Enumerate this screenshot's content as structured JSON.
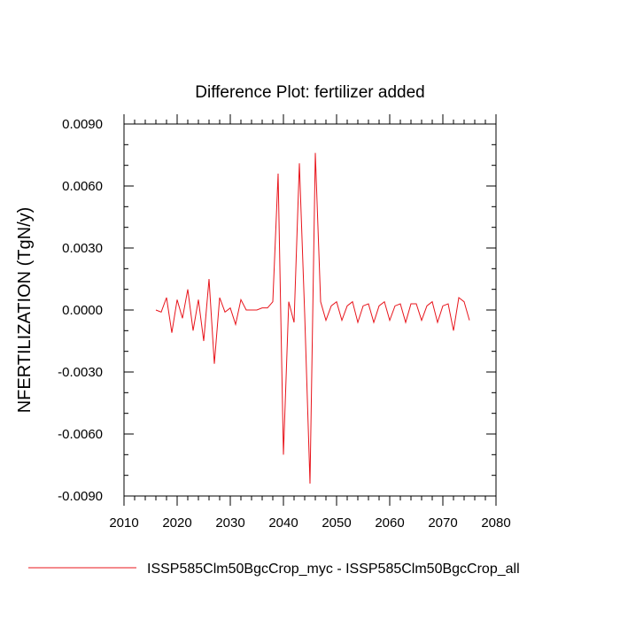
{
  "chart_data": {
    "type": "line",
    "title": "Difference Plot: fertilizer added",
    "xlabel": "",
    "ylabel": "NFERTILIZATION  (TgN/y)",
    "xlim": [
      2010,
      2080
    ],
    "ylim": [
      -0.009,
      0.009
    ],
    "xticks": [
      2010,
      2020,
      2030,
      2040,
      2050,
      2060,
      2070,
      2080
    ],
    "xtick_labels": [
      "2010",
      "2020",
      "2030",
      "2040",
      "2050",
      "2060",
      "2070",
      "2080"
    ],
    "yticks": [
      0.009,
      0.006,
      0.003,
      0.0,
      -0.003,
      -0.006,
      -0.009
    ],
    "ytick_labels": [
      "0.0090",
      "0.0060",
      "0.0030",
      "0.0000",
      "-0.0030",
      "-0.0060",
      "-0.0090"
    ],
    "grid": false,
    "legend_position": "bottom",
    "series": [
      {
        "name": "ISSP585Clm50BgcCrop_myc - ISSP585Clm50BgcCrop_all",
        "color": "#e8141b",
        "x": [
          2016,
          2017,
          2018,
          2019,
          2020,
          2021,
          2022,
          2023,
          2024,
          2025,
          2026,
          2027,
          2028,
          2029,
          2030,
          2031,
          2032,
          2033,
          2034,
          2035,
          2036,
          2037,
          2038,
          2039,
          2040,
          2041,
          2042,
          2043,
          2044,
          2045,
          2046,
          2047,
          2048,
          2049,
          2050,
          2051,
          2052,
          2053,
          2054,
          2055,
          2056,
          2057,
          2058,
          2059,
          2060,
          2061,
          2062,
          2063,
          2064,
          2065,
          2066,
          2067,
          2068,
          2069,
          2070,
          2071,
          2072,
          2073,
          2074,
          2075
        ],
        "y": [
          0.0,
          -0.0001,
          0.0006,
          -0.0011,
          0.0005,
          -0.0004,
          0.001,
          -0.001,
          0.0005,
          -0.0015,
          0.0015,
          -0.0026,
          0.0006,
          -0.0001,
          0.0001,
          -0.0007,
          0.0005,
          0.0,
          0.0,
          0.0,
          0.0001,
          0.0001,
          0.0004,
          0.0066,
          -0.007,
          0.0004,
          -0.0006,
          0.0071,
          -0.0002,
          -0.0084,
          0.0076,
          0.0004,
          -0.0005,
          0.0002,
          0.0004,
          -0.0005,
          0.0002,
          0.0004,
          -0.0006,
          0.0002,
          0.0003,
          -0.0006,
          0.0002,
          0.0004,
          -0.0005,
          0.0002,
          0.0003,
          -0.0006,
          0.0003,
          0.0003,
          -0.0005,
          0.0002,
          0.0004,
          -0.0006,
          0.0002,
          0.0003,
          -0.001,
          0.0006,
          0.0004,
          -0.0005
        ]
      }
    ]
  }
}
